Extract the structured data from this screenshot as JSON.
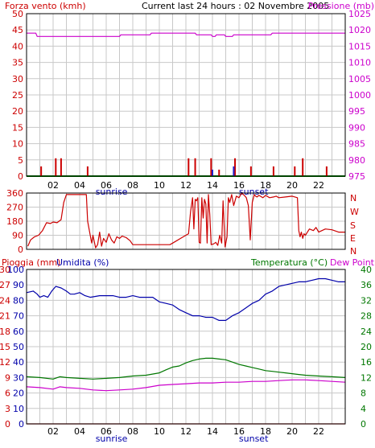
{
  "header": {
    "left_title": "Forza vento (kmh)",
    "center_title": "Current last 24 hours : 02 Novembre 2005",
    "right_title": "Pressione (mb)",
    "left_color": "#cc0000",
    "right_color": "#cc00cc"
  },
  "wind_dir_labels": [
    "N",
    "W",
    "S",
    "E",
    "N"
  ],
  "bottom_header": {
    "rain_label": "Pioggia (mm)",
    "humidity_label": "Umidita (%)",
    "temp_label": "Temperatura (°C)",
    "dew_label": "Dew Point"
  },
  "colors": {
    "wind": "#cc0000",
    "wind_alt": "#2222cc",
    "pressure": "#cc00cc",
    "humidity": "#0000aa",
    "temperature": "#007700",
    "dew": "#cc00cc",
    "grid": "#c8c8c8",
    "axis": "#000000",
    "left_axis_text": "#cc0000",
    "right_axis_text_pressure": "#cc00cc",
    "right_axis_text_temp": "#007700",
    "humidity_axis_text": "#0000aa",
    "baseline": "#008800"
  },
  "chart_data": [
    {
      "type": "bar",
      "title": "Current last 24 hours : 02 Novembre 2005",
      "xlabel": "",
      "ylabel": "Forza vento (kmh)",
      "y2label": "Pressione (mb)",
      "x_ticks": [
        "02",
        "04",
        "06",
        "08",
        "10",
        "12",
        "14",
        "16",
        "18",
        "20",
        "22"
      ],
      "x_annotations": [
        {
          "text": "sunrise",
          "x": 6.4
        },
        {
          "text": "sunset",
          "x": 17.1
        }
      ],
      "ylim": [
        0,
        50
      ],
      "y_ticks": [
        0,
        5,
        10,
        15,
        20,
        25,
        30,
        35,
        40,
        45,
        50
      ],
      "y2lim": [
        975,
        1025
      ],
      "y2_ticks": [
        975,
        980,
        985,
        990,
        995,
        1000,
        1005,
        1010,
        1015,
        1020,
        1025
      ],
      "xlim": [
        0,
        24
      ],
      "wind_bars": [
        {
          "x": 1.1,
          "v": 3
        },
        {
          "x": 2.2,
          "v": 5.5
        },
        {
          "x": 2.6,
          "v": 5.5
        },
        {
          "x": 4.6,
          "v": 3
        },
        {
          "x": 12.2,
          "v": 5.5
        },
        {
          "x": 12.7,
          "v": 5.5
        },
        {
          "x": 13.9,
          "v": 5.5
        },
        {
          "x": 14.5,
          "v": 2
        },
        {
          "x": 15.7,
          "v": 5.5
        },
        {
          "x": 16.9,
          "v": 3
        },
        {
          "x": 18.6,
          "v": 3
        },
        {
          "x": 20.2,
          "v": 3
        },
        {
          "x": 20.8,
          "v": 5.5
        },
        {
          "x": 22.6,
          "v": 3
        }
      ],
      "wind_bars_alt": [
        {
          "x": 14.0,
          "v": 2
        },
        {
          "x": 15.6,
          "v": 3
        }
      ],
      "series": [
        {
          "name": "Pressione (mb)",
          "axis": "y2",
          "x": [
            0,
            0.7,
            0.8,
            2.6,
            2.7,
            7.0,
            7.1,
            9.3,
            9.4,
            12.7,
            12.8,
            13.9,
            14.0,
            14.2,
            14.3,
            14.9,
            15.0,
            15.5,
            15.6,
            18.4,
            18.5,
            24
          ],
          "values": [
            1019,
            1019,
            1018,
            1018,
            1018,
            1018,
            1018.5,
            1018.5,
            1019,
            1019,
            1018.5,
            1018.5,
            1018,
            1018,
            1018.5,
            1018.5,
            1018,
            1018,
            1018.5,
            1018.5,
            1019,
            1019
          ]
        }
      ]
    },
    {
      "type": "line",
      "ylabel": "",
      "ylim": [
        0,
        360
      ],
      "y_ticks": [
        0,
        90,
        180,
        270,
        360
      ],
      "xlim": [
        0,
        24
      ],
      "series": [
        {
          "name": "",
          "x": [
            0.1,
            0.3,
            0.6,
            0.9,
            1.2,
            1.5,
            1.8,
            2.0,
            2.3,
            2.6,
            2.8,
            3.0,
            4.5,
            4.6,
            4.9,
            5.0,
            5.2,
            5.35,
            5.5,
            5.65,
            5.8,
            6.0,
            6.2,
            6.4,
            6.6,
            6.8,
            7.0,
            7.2,
            7.5,
            7.8,
            8.0,
            10.8,
            11.2,
            11.6,
            12.0,
            12.2,
            12.35,
            12.5,
            12.6,
            12.7,
            12.8,
            12.9,
            13.0,
            13.1,
            13.2,
            13.3,
            13.4,
            13.5,
            13.6,
            13.7,
            13.8,
            13.9,
            14.1,
            14.25,
            14.4,
            14.55,
            14.7,
            14.8,
            14.95,
            15.1,
            15.2,
            15.3,
            15.45,
            15.6,
            15.8,
            16.0,
            16.2,
            16.4,
            16.55,
            16.7,
            16.85,
            17.0,
            17.15,
            17.25,
            17.35,
            17.5,
            17.8,
            18.0,
            18.3,
            18.6,
            18.8,
            19.0,
            19.5,
            20.0,
            20.4,
            20.5,
            20.6,
            20.7,
            20.8,
            20.9,
            21.0,
            21.3,
            21.6,
            21.8,
            22.0,
            22.5,
            23.0,
            23.5,
            24.0
          ],
          "values": [
            20,
            60,
            80,
            90,
            120,
            170,
            165,
            175,
            170,
            190,
            300,
            350,
            350,
            180,
            40,
            90,
            10,
            30,
            110,
            20,
            70,
            45,
            100,
            60,
            40,
            80,
            70,
            85,
            75,
            55,
            30,
            30,
            50,
            70,
            90,
            100,
            240,
            330,
            130,
            320,
            310,
            330,
            45,
            40,
            330,
            200,
            320,
            290,
            40,
            350,
            220,
            30,
            35,
            45,
            25,
            90,
            40,
            310,
            15,
            80,
            330,
            300,
            350,
            280,
            340,
            330,
            360,
            345,
            330,
            280,
            60,
            300,
            350,
            340,
            335,
            345,
            330,
            345,
            330,
            335,
            340,
            330,
            335,
            340,
            330,
            120,
            80,
            110,
            70,
            100,
            90,
            130,
            120,
            140,
            110,
            130,
            125,
            110,
            110
          ]
        }
      ]
    },
    {
      "type": "line",
      "ylabel": "Pioggia (mm)",
      "ylim": [
        0,
        30
      ],
      "y_ticks": [
        0,
        3,
        6,
        9,
        12,
        15,
        18,
        21,
        24,
        27,
        30
      ],
      "humidity_ticks": [
        0,
        10,
        20,
        30,
        40,
        50,
        60,
        70,
        80,
        90,
        100
      ],
      "y2lim": [
        0,
        40
      ],
      "y2_ticks": [
        0,
        4,
        8,
        12,
        16,
        20,
        24,
        28,
        32,
        36,
        40
      ],
      "xlim": [
        0,
        24
      ],
      "x_ticks": [
        "02",
        "04",
        "06",
        "08",
        "10",
        "12",
        "14",
        "16",
        "18",
        "20",
        "22"
      ],
      "x_annotations": [
        {
          "text": "sunrise",
          "x": 6.4
        },
        {
          "text": "sunset",
          "x": 17.1
        }
      ],
      "series": [
        {
          "name": "Umidita (%)",
          "axis": "humidity",
          "x": [
            0,
            0.5,
            0.8,
            1.0,
            1.3,
            1.6,
            1.9,
            2.2,
            2.6,
            3.0,
            3.3,
            3.6,
            4.0,
            4.4,
            4.8,
            5.5,
            6.5,
            7.0,
            7.5,
            8.0,
            8.5,
            9.0,
            9.5,
            10.0,
            10.5,
            11.0,
            11.5,
            12.0,
            12.5,
            13.0,
            13.5,
            14.0,
            14.5,
            15.0,
            15.5,
            16.0,
            16.5,
            17.0,
            17.5,
            18.0,
            18.5,
            19.0,
            19.5,
            20.0,
            20.5,
            21.0,
            21.5,
            22.0,
            22.5,
            23.0,
            23.5,
            24.0
          ],
          "values": [
            85,
            86,
            84,
            82,
            83,
            82,
            86,
            89,
            88,
            86,
            84,
            84,
            85,
            83,
            82,
            83,
            83,
            82,
            82,
            83,
            82,
            82,
            82,
            79,
            78,
            77,
            74,
            72,
            70,
            70,
            69,
            69,
            67,
            67,
            70,
            72,
            75,
            78,
            80,
            84,
            86,
            89,
            90,
            91,
            92,
            92,
            93,
            94,
            94,
            93,
            92,
            92
          ]
        },
        {
          "name": "Temperatura (°C)",
          "axis": "y2",
          "x": [
            0,
            1.0,
            2.0,
            2.5,
            3.0,
            4.0,
            5.0,
            6.0,
            7.0,
            8.0,
            9.0,
            10.0,
            10.5,
            11.0,
            11.5,
            12.0,
            12.5,
            13.0,
            13.5,
            14.0,
            14.5,
            15.0,
            15.5,
            16.0,
            16.5,
            17.0,
            17.5,
            18.0,
            18.5,
            19.0,
            19.5,
            20.0,
            20.5,
            21.0,
            22.0,
            23.0,
            24.0
          ],
          "values": [
            12.2,
            12.0,
            11.6,
            12.2,
            12.0,
            11.8,
            11.6,
            11.8,
            12.0,
            12.4,
            12.6,
            13.2,
            14.0,
            14.7,
            15.0,
            15.8,
            16.4,
            16.8,
            17.0,
            17.0,
            16.8,
            16.6,
            16.0,
            15.4,
            15.0,
            14.6,
            14.2,
            13.8,
            13.6,
            13.4,
            13.2,
            13.0,
            12.8,
            12.6,
            12.4,
            12.2,
            12.0
          ]
        },
        {
          "name": "Dew Point",
          "axis": "y2",
          "x": [
            0,
            1.0,
            2.0,
            2.5,
            3.0,
            4.0,
            5.0,
            6.0,
            7.0,
            8.0,
            9.0,
            10.0,
            11.0,
            12.0,
            13.0,
            14.0,
            15.0,
            16.0,
            17.0,
            18.0,
            19.0,
            20.0,
            21.0,
            22.0,
            23.0,
            24.0
          ],
          "values": [
            9.6,
            9.4,
            9.0,
            9.6,
            9.4,
            9.2,
            8.8,
            8.6,
            8.8,
            9.0,
            9.4,
            10.0,
            10.2,
            10.4,
            10.6,
            10.6,
            10.8,
            10.8,
            11.0,
            11.0,
            11.2,
            11.4,
            11.4,
            11.2,
            11.0,
            10.8
          ]
        },
        {
          "name": "Pioggia (mm)",
          "axis": "y",
          "x": [
            0,
            24
          ],
          "values": [
            0,
            0
          ]
        }
      ]
    }
  ]
}
